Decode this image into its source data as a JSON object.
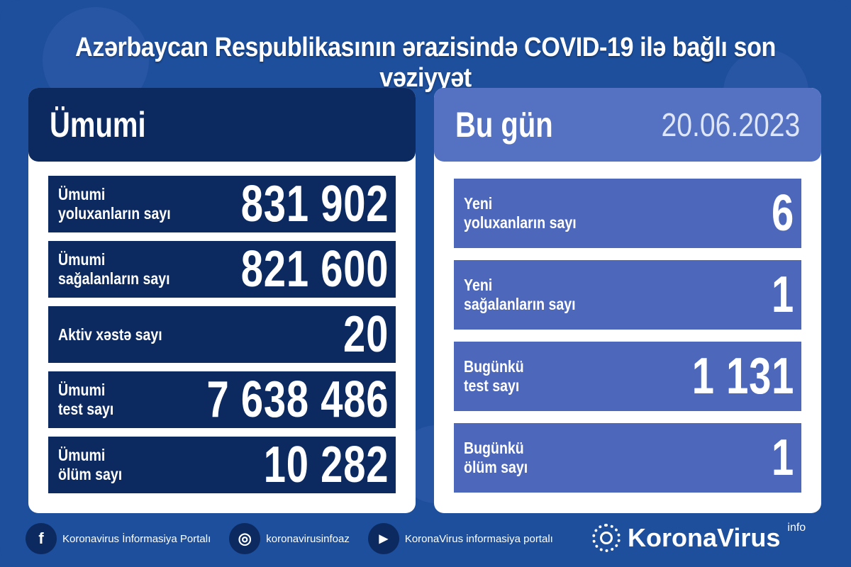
{
  "title": "Azərbaycan Respublikasının ərazisində COVID-19 ilə bağlı son vəziyyət",
  "total": {
    "heading": "Ümumi",
    "rows": [
      {
        "l1": "Ümumi",
        "l2": "yoluxanların sayı",
        "value": "831 902"
      },
      {
        "l1": "Ümumi",
        "l2": "sağalanların sayı",
        "value": "821 600"
      },
      {
        "l1": "Aktiv xəstə sayı",
        "l2": "",
        "value": "20"
      },
      {
        "l1": "Ümumi",
        "l2": "test sayı",
        "value": "7 638 486"
      },
      {
        "l1": "Ümumi",
        "l2": "ölüm sayı",
        "value": "10 282"
      }
    ]
  },
  "today": {
    "heading": "Bu gün",
    "date": "20.06.2023",
    "rows": [
      {
        "l1": "Yeni",
        "l2": "yoluxanların sayı",
        "value": "6"
      },
      {
        "l1": "Yeni",
        "l2": "sağalanların sayı",
        "value": "1"
      },
      {
        "l1": "Bugünkü",
        "l2": "test sayı",
        "value": "1 131"
      },
      {
        "l1": "Bugünkü",
        "l2": "ölüm sayı",
        "value": "1"
      }
    ]
  },
  "footer": {
    "facebook": "Koronavirus İnformasiya Portalı",
    "instagram": "koronavirusinfoaz",
    "youtube": "KoronaVirus informasiya portalı"
  },
  "brand": {
    "name": "KoronaVirus",
    "suffix": "info"
  },
  "colors": {
    "background": "#1d4f9c",
    "navy": "#0c2a5f",
    "today_row": "#4d67bb"
  }
}
